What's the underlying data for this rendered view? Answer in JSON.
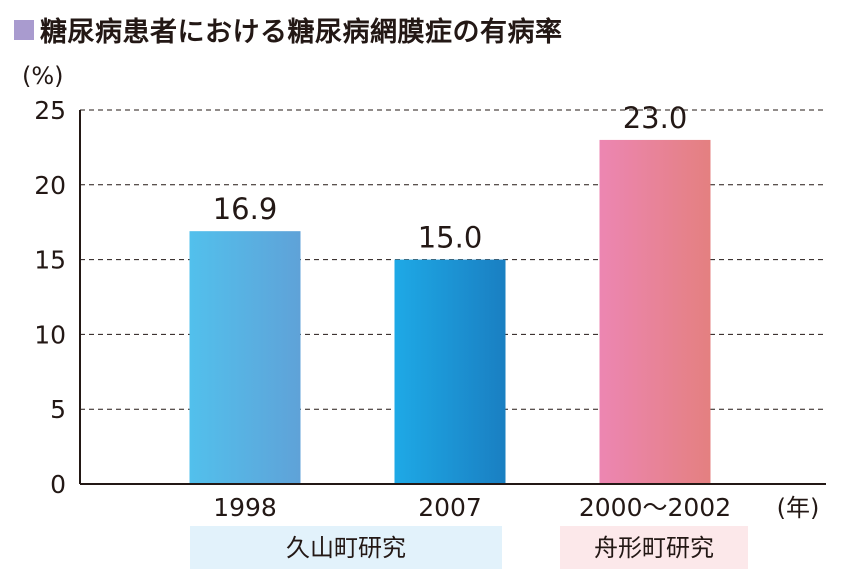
{
  "title": "糖尿病患者における糖尿病網膜症の有病率",
  "colors": {
    "title_square": "#a99bcf",
    "bar1": [
      "#52c0ec",
      "#5fa2d8"
    ],
    "bar2": [
      "#1ea9e6",
      "#1a7fc2"
    ],
    "bar3": [
      "#ec86b2",
      "#e48080"
    ],
    "group_blue_bg": "#e2f2fb",
    "group_pink_bg": "#fce8ea"
  },
  "chart_data": {
    "type": "bar",
    "ylabel": "(%)",
    "xunit": "(年)",
    "ylim": [
      0,
      25
    ],
    "yticks": [
      "0",
      "5",
      "10",
      "15",
      "20",
      "25"
    ],
    "grid": "dashed horizontal",
    "categories": [
      "1998",
      "2007",
      "2000〜2002"
    ],
    "values": [
      16.9,
      15.0,
      23.0
    ],
    "value_labels": [
      "16.9",
      "15.0",
      "23.0"
    ],
    "groups": [
      {
        "label": "久山町研究",
        "spans": [
          0,
          1
        ]
      },
      {
        "label": "舟形町研究",
        "spans": [
          2,
          2
        ]
      }
    ]
  }
}
